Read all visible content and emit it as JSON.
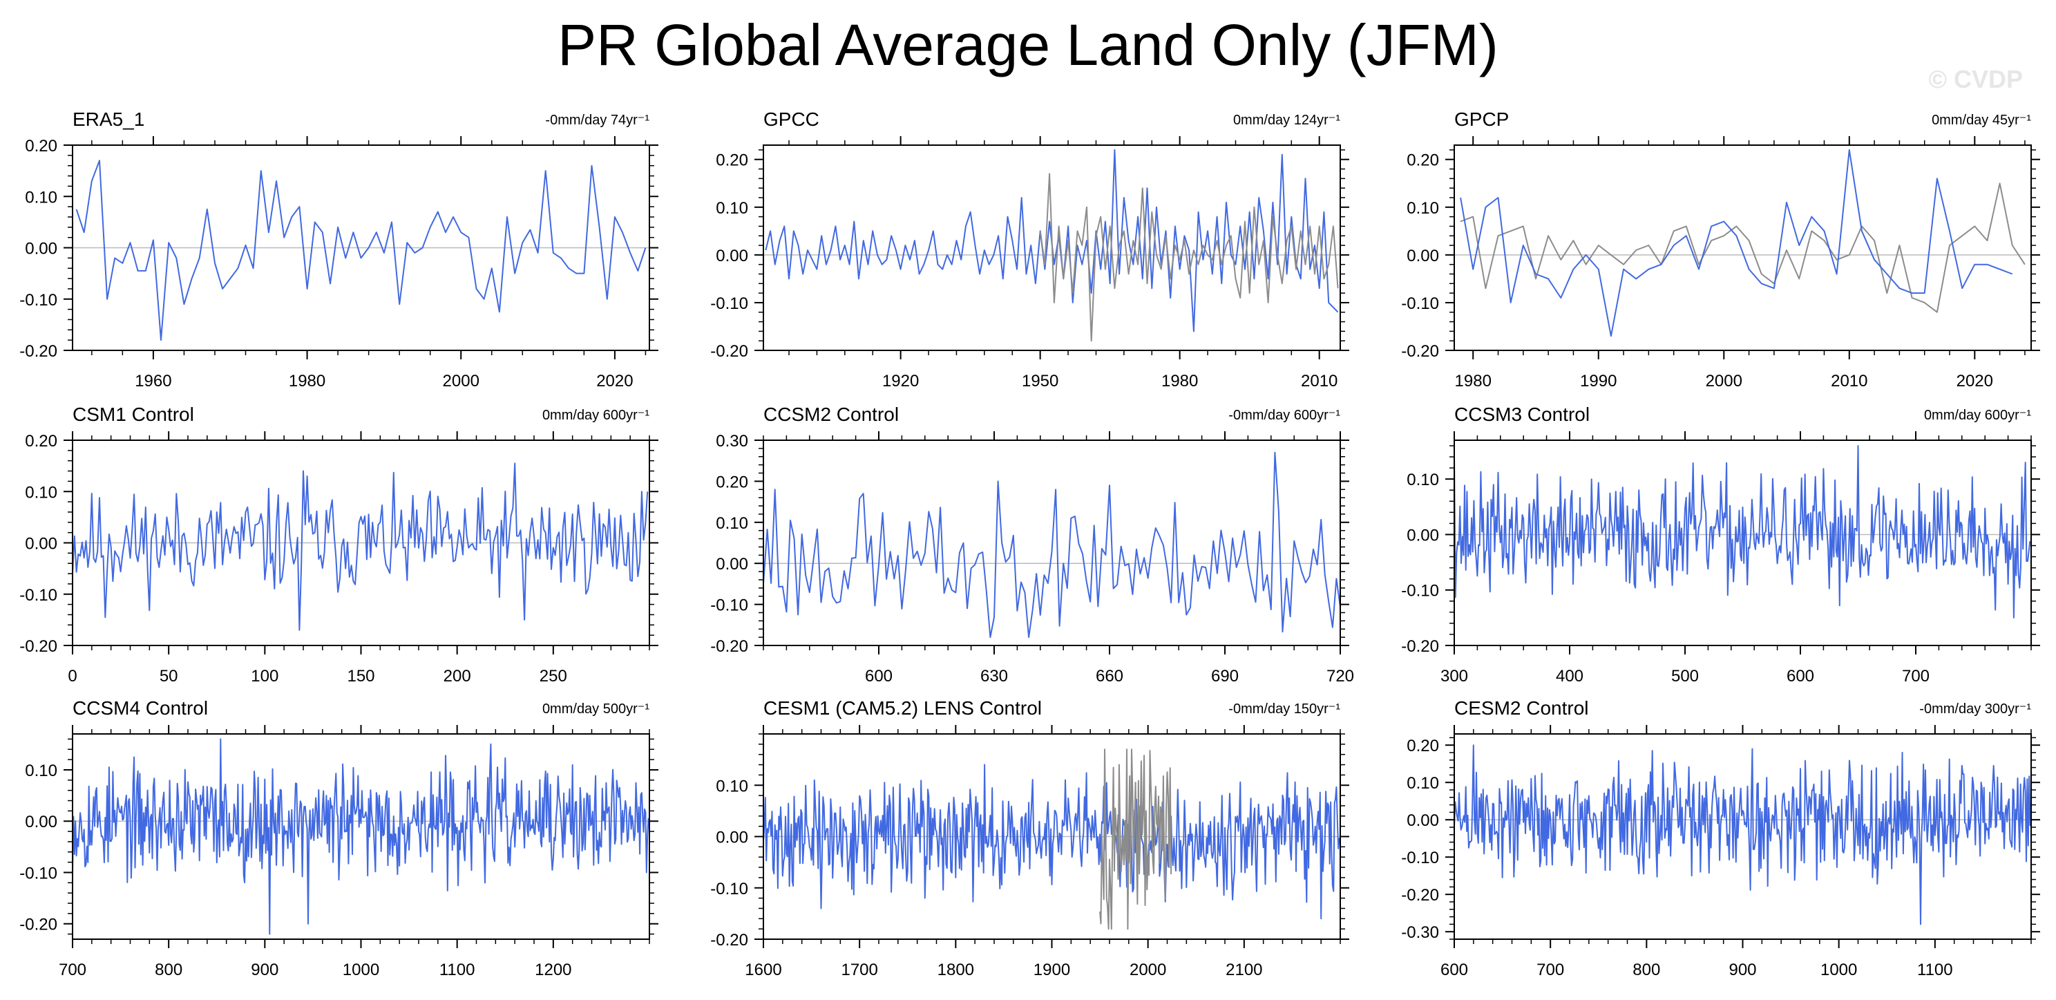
{
  "title": "PR Global Average Land Only (JFM)",
  "watermark": "© CVDP",
  "colors": {
    "model": "#4169e1",
    "obs": "#8c8c8c",
    "axis": "#000000",
    "zero": "#bbbbbb"
  },
  "chart_data": [
    {
      "type": "line",
      "title": "ERA5_1",
      "trend_label": "-0mm/day 74yr⁻¹",
      "xlim": [
        1949.5,
        2024.5
      ],
      "ylim": [
        -0.2,
        0.2
      ],
      "xticks": [
        1960,
        1980,
        2000,
        2020
      ],
      "yticks": [
        -0.2,
        -0.1,
        0.0,
        0.1,
        0.2
      ],
      "ytick_labels": [
        "-0.20",
        "-0.10",
        "0.00",
        "0.10",
        "0.20"
      ],
      "series": [
        {
          "name": "ERA5_1",
          "color_key": "model",
          "x_start": 1950,
          "x_step": 1,
          "values": [
            0.075,
            0.03,
            0.13,
            0.17,
            -0.1,
            -0.02,
            -0.03,
            0.01,
            -0.045,
            -0.045,
            0.015,
            -0.18,
            0.01,
            -0.02,
            -0.11,
            -0.06,
            -0.02,
            0.075,
            -0.03,
            -0.08,
            -0.06,
            -0.04,
            0.005,
            -0.04,
            0.15,
            0.03,
            0.13,
            0.02,
            0.06,
            0.08,
            -0.08,
            0.05,
            0.03,
            -0.07,
            0.04,
            -0.02,
            0.03,
            -0.02,
            0.0,
            0.03,
            -0.01,
            0.05,
            -0.11,
            0.01,
            -0.01,
            0.0,
            0.04,
            0.07,
            0.03,
            0.06,
            0.03,
            0.02,
            -0.08,
            -0.1,
            -0.04,
            -0.125,
            0.06,
            -0.05,
            0.01,
            0.035,
            -0.01,
            0.15,
            -0.01,
            -0.02,
            -0.04,
            -0.05,
            -0.05,
            0.16,
            0.04,
            -0.1,
            0.06,
            0.03,
            -0.01,
            -0.045,
            0.0
          ]
        }
      ]
    },
    {
      "type": "line",
      "title": "GPCC",
      "trend_label": "0mm/day 124yr⁻¹",
      "xlim": [
        1890.5,
        2014.5
      ],
      "ylim": [
        -0.2,
        0.23
      ],
      "xticks": [
        1920,
        1950,
        1980,
        2010
      ],
      "yticks": [
        -0.2,
        -0.1,
        0.0,
        0.1,
        0.2
      ],
      "ytick_labels": [
        "-0.20",
        "-0.10",
        "0.00",
        "0.10",
        "0.20"
      ],
      "series": [
        {
          "name": "GPCC",
          "color_key": "model",
          "x_start": 1891,
          "x_step": 1,
          "values": [
            0.01,
            0.05,
            -0.02,
            0.03,
            0.06,
            -0.05,
            0.05,
            0.02,
            -0.04,
            0.01,
            -0.01,
            -0.03,
            0.04,
            -0.02,
            0.01,
            0.06,
            -0.01,
            0.02,
            -0.02,
            0.07,
            -0.05,
            0.03,
            -0.02,
            0.05,
            0.0,
            -0.02,
            -0.01,
            0.04,
            0.01,
            -0.03,
            0.02,
            -0.01,
            0.03,
            -0.04,
            -0.02,
            0.01,
            0.05,
            -0.02,
            -0.03,
            0.0,
            -0.02,
            0.03,
            -0.01,
            0.06,
            0.09,
            0.02,
            -0.04,
            0.01,
            -0.02,
            0.0,
            0.04,
            -0.05,
            0.08,
            0.03,
            -0.03,
            0.12,
            -0.04,
            0.02,
            -0.06,
            0.05,
            -0.03,
            0.07,
            -0.02,
            0.04,
            -0.05,
            0.06,
            -0.1,
            0.02,
            -0.02,
            0.03,
            -0.08,
            0.05,
            -0.03,
            0.07,
            -0.06,
            0.22,
            -0.04,
            0.12,
            0.03,
            -0.02,
            0.08,
            -0.05,
            0.14,
            -0.07,
            0.1,
            -0.02,
            0.05,
            -0.09,
            0.06,
            -0.03,
            0.04,
            0.01,
            -0.16,
            0.09,
            -0.01,
            0.05,
            -0.04,
            0.08,
            -0.06,
            0.11,
            0.0,
            -0.02,
            0.06,
            -0.03,
            0.09,
            -0.05,
            0.12,
            0.05,
            -0.05,
            0.11,
            -0.02,
            0.21,
            -0.04,
            0.08,
            -0.02,
            -0.05,
            0.16,
            -0.03,
            0.02,
            -0.07,
            0.09,
            -0.1,
            -0.11,
            -0.12
          ]
        },
        {
          "name": "Observations",
          "color_key": "obs",
          "x_start": 1950,
          "x_step": 1,
          "values": [
            0.05,
            -0.02,
            0.17,
            -0.1,
            0.06,
            -0.05,
            0.03,
            -0.08,
            0.05,
            0.02,
            0.1,
            -0.18,
            0.04,
            0.08,
            -0.03,
            0.06,
            -0.07,
            0.02,
            0.05,
            -0.04,
            0.03,
            -0.02,
            0.14,
            -0.06,
            0.09,
            0.0,
            -0.03,
            0.04,
            -0.05,
            0.02,
            -0.01,
            0.03,
            -0.04,
            0.01,
            -0.02,
            0.02,
            0.0,
            -0.01,
            0.03,
            -0.02,
            0.02,
            0.04,
            -0.05,
            -0.09,
            0.07,
            -0.08,
            0.1,
            -0.02,
            0.03,
            -0.1,
            0.08,
            0.0,
            -0.06,
            0.03,
            0.06,
            -0.03,
            0.05,
            -0.02,
            0.06,
            -0.04,
            0.06,
            -0.05,
            -0.02,
            0.06,
            -0.07
          ]
        }
      ]
    },
    {
      "type": "line",
      "title": "GPCP",
      "trend_label": "0mm/day 45yr⁻¹",
      "xlim": [
        1978.5,
        2024.5
      ],
      "ylim": [
        -0.2,
        0.23
      ],
      "xticks": [
        1980,
        1990,
        2000,
        2010,
        2020
      ],
      "yticks": [
        -0.2,
        -0.1,
        0.0,
        0.1,
        0.2
      ],
      "ytick_labels": [
        "-0.20",
        "-0.10",
        "0.00",
        "0.10",
        "0.20"
      ],
      "series": [
        {
          "name": "Observations",
          "color_key": "obs",
          "x_start": 1979,
          "x_step": 1,
          "values": [
            0.07,
            0.08,
            -0.07,
            0.04,
            0.05,
            0.06,
            -0.05,
            0.04,
            -0.01,
            0.03,
            -0.02,
            0.02,
            0.0,
            -0.02,
            0.01,
            0.02,
            -0.02,
            0.05,
            0.06,
            -0.02,
            0.03,
            0.04,
            0.06,
            0.03,
            -0.04,
            -0.06,
            0.01,
            -0.05,
            0.05,
            0.03,
            -0.01,
            0.0,
            0.06,
            0.03,
            -0.08,
            0.02,
            -0.09,
            -0.1,
            -0.12,
            0.02,
            0.04,
            0.06,
            0.03,
            0.15,
            0.02,
            -0.02,
            0.04,
            -0.03
          ]
        },
        {
          "name": "GPCP",
          "color_key": "model",
          "x_start": 1979,
          "x_step": 1,
          "values": [
            0.12,
            -0.03,
            0.1,
            0.12,
            -0.1,
            0.02,
            -0.04,
            -0.05,
            -0.09,
            -0.03,
            0.0,
            -0.03,
            -0.17,
            -0.03,
            -0.05,
            -0.03,
            -0.02,
            0.02,
            0.04,
            -0.03,
            0.06,
            0.07,
            0.04,
            -0.03,
            -0.06,
            -0.07,
            0.11,
            0.02,
            0.08,
            0.05,
            -0.04,
            0.22,
            0.05,
            -0.01,
            -0.04,
            -0.07,
            -0.08,
            -0.08,
            0.16,
            0.05,
            -0.07,
            -0.02,
            -0.02,
            -0.03,
            -0.04
          ]
        }
      ]
    },
    {
      "type": "line",
      "title": "CSM1 Control",
      "trend_label": "0mm/day 600yr⁻¹",
      "xlim": [
        0,
        300
      ],
      "ylim": [
        -0.2,
        0.2
      ],
      "xticks": [
        0,
        50,
        100,
        150,
        200,
        250
      ],
      "yticks": [
        -0.2,
        -0.1,
        0.0,
        0.1,
        0.2
      ],
      "ytick_labels": [
        "-0.20",
        "-0.10",
        "0.00",
        "0.10",
        "0.20"
      ],
      "series": [
        {
          "name": "CSM1 Control",
          "color_key": "model",
          "x_start": 0,
          "x_step": 1,
          "gen": {
            "n": 300,
            "amp": 0.048,
            "seed": 11,
            "clip": [
              -0.18,
              0.16
            ]
          },
          "spikes": [
            [
              120,
              0.14
            ],
            [
              122,
              0.13
            ],
            [
              118,
              -0.17
            ],
            [
              230,
              0.155
            ],
            [
              235,
              -0.15
            ],
            [
              17,
              -0.145
            ],
            [
              296,
              0.1
            ],
            [
              299,
              0.1
            ]
          ]
        }
      ]
    },
    {
      "type": "line",
      "title": "CCSM2 Control",
      "trend_label": "-0mm/day 600yr⁻¹",
      "xlim": [
        570,
        720
      ],
      "ylim": [
        -0.2,
        0.3
      ],
      "xticks": [
        600,
        630,
        660,
        690,
        720
      ],
      "yticks": [
        -0.2,
        -0.1,
        0.0,
        0.1,
        0.2,
        0.3
      ],
      "ytick_labels": [
        "-0.20",
        "-0.10",
        "0.00",
        "0.10",
        "0.20",
        "0.30"
      ],
      "series": [
        {
          "name": "CCSM2 Control",
          "color_key": "model",
          "x_start": 570,
          "x_step": 1,
          "gen": {
            "n": 151,
            "amp": 0.075,
            "seed": 23,
            "clip": [
              -0.18,
              0.2
            ]
          },
          "spikes": [
            [
              573,
              0.18
            ],
            [
              596,
              0.17
            ],
            [
              703,
              0.27
            ],
            [
              629,
              -0.18
            ],
            [
              646,
              0.18
            ],
            [
              660,
              0.19
            ]
          ]
        }
      ]
    },
    {
      "type": "line",
      "title": "CCSM3 Control",
      "trend_label": "0mm/day 600yr⁻¹",
      "xlim": [
        300,
        800
      ],
      "ylim": [
        -0.2,
        0.17
      ],
      "xticks": [
        300,
        400,
        500,
        600,
        700
      ],
      "yticks": [
        -0.2,
        -0.1,
        0.0,
        0.1
      ],
      "ytick_labels": [
        "-0.20",
        "-0.10",
        "0.00",
        "0.10"
      ],
      "series": [
        {
          "name": "CCSM3 Control",
          "color_key": "model",
          "x_start": 300,
          "x_step": 1,
          "gen": {
            "n": 500,
            "amp": 0.05,
            "seed": 37,
            "clip": [
              -0.15,
              0.14
            ]
          },
          "spikes": [
            [
              650,
              0.16
            ],
            [
              300,
              0.14
            ],
            [
              785,
              -0.15
            ],
            [
              795,
              0.13
            ]
          ]
        }
      ]
    },
    {
      "type": "line",
      "title": "CCSM4 Control",
      "trend_label": "0mm/day 500yr⁻¹",
      "xlim": [
        700,
        1300
      ],
      "ylim": [
        -0.23,
        0.17
      ],
      "xticks": [
        700,
        800,
        900,
        1000,
        1100,
        1200
      ],
      "yticks": [
        -0.2,
        -0.1,
        0.0,
        0.1
      ],
      "ytick_labels": [
        "-0.20",
        "-0.10",
        "0.00",
        "0.10"
      ],
      "series": [
        {
          "name": "CCSM4 Control",
          "color_key": "model",
          "x_start": 700,
          "x_step": 1,
          "gen": {
            "n": 600,
            "amp": 0.05,
            "seed": 53,
            "clip": [
              -0.2,
              0.16
            ]
          },
          "spikes": [
            [
              905,
              -0.22
            ],
            [
              945,
              -0.2
            ],
            [
              854,
              0.16
            ],
            [
              1135,
              0.15
            ],
            [
              1297,
              -0.1
            ]
          ]
        }
      ]
    },
    {
      "type": "line",
      "title": "CESM1 (CAM5.2) LENS Control",
      "trend_label": "-0mm/day 150yr⁻¹",
      "xlim": [
        1600,
        2200
      ],
      "ylim": [
        -0.2,
        0.2
      ],
      "xticks": [
        1600,
        1700,
        1800,
        1900,
        2000,
        2100
      ],
      "yticks": [
        -0.2,
        -0.1,
        0.0,
        0.1
      ],
      "ytick_labels": [
        "-0.20",
        "-0.10",
        "0.00",
        "0.10"
      ],
      "series": [
        {
          "name": "CESM1 (CAM5.2) LENS Control",
          "color_key": "model",
          "x_start": 1600,
          "x_step": 1,
          "gen": {
            "n": 600,
            "amp": 0.05,
            "seed": 71,
            "clip": [
              -0.16,
              0.14
            ]
          },
          "spikes": [
            [
              2180,
              -0.16
            ],
            [
              1660,
              -0.14
            ]
          ]
        },
        {
          "name": "Observations",
          "color_key": "obs",
          "x_start": 1950,
          "x_step": 1,
          "gen": {
            "n": 75,
            "amp": 0.08,
            "seed": 97,
            "clip": [
              -0.18,
              0.17
            ]
          },
          "spikes": [
            [
              1955,
              0.17
            ],
            [
              1962,
              -0.18
            ],
            [
              1970,
              0.14
            ]
          ]
        }
      ]
    },
    {
      "type": "line",
      "title": "CESM2 Control",
      "trend_label": "-0mm/day 300yr⁻¹",
      "xlim": [
        600,
        1200
      ],
      "ylim": [
        -0.32,
        0.23
      ],
      "xticks": [
        600,
        700,
        800,
        900,
        1000,
        1100
      ],
      "yticks": [
        -0.3,
        -0.2,
        -0.1,
        0.0,
        0.1,
        0.2
      ],
      "ytick_labels": [
        "-0.30",
        "-0.20",
        "-0.10",
        "0.00",
        "0.10",
        "0.20"
      ],
      "series": [
        {
          "name": "CESM2 Control",
          "color_key": "model",
          "x_start": 600,
          "x_step": 1,
          "gen": {
            "n": 600,
            "amp": 0.072,
            "seed": 89,
            "clip": [
              -0.22,
              0.19
            ]
          },
          "spikes": [
            [
              1085,
              -0.28
            ],
            [
              910,
              0.19
            ],
            [
              620,
              0.2
            ]
          ]
        }
      ]
    }
  ]
}
